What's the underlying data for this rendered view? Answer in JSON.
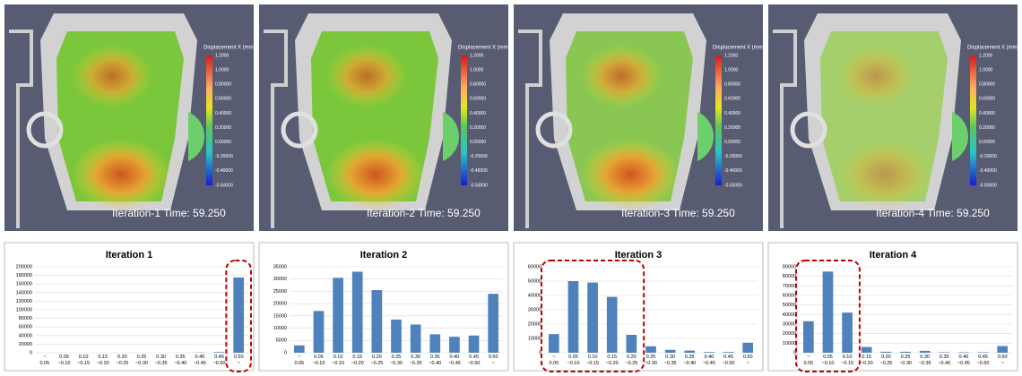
{
  "panels": [
    {
      "caption": "Iteration-1 Time: 59.250",
      "colorbar_title": "Displacement X (mm)",
      "colorbar_labels": [
        "1.2000",
        "1.0000",
        "0.80000",
        "0.60000",
        "0.40000",
        "0.20000",
        "0.00000",
        "-0.20000",
        "-0.40000",
        "-0.60000"
      ]
    },
    {
      "caption": "Iteration-2 Time: 59.250",
      "colorbar_title": "Displacement X (mm)",
      "colorbar_labels": [
        "1.2000",
        "1.0000",
        "0.80000",
        "0.60000",
        "0.40000",
        "0.20000",
        "0.00000",
        "-0.20000",
        "-0.40000",
        "-0.50000"
      ]
    },
    {
      "caption": "Iteration-3 Time: 59.250",
      "colorbar_title": "Displacement X (mm)",
      "colorbar_labels": [
        "1.2000",
        "1.0000",
        "0.80000",
        "0.60000",
        "0.40000",
        "0.20000",
        "0.00000",
        "-0.20000",
        "-0.40000",
        "-0.50000"
      ]
    },
    {
      "caption": "Iteration-4 Time: 59.250",
      "colorbar_title": "Displacement X (mm)",
      "colorbar_labels": [
        "1.2000",
        "1.0000",
        "0.80000",
        "0.60000",
        "0.40000",
        "0.20000",
        "0.00000",
        "-0.20000",
        "-0.40000",
        "-0.50000"
      ]
    }
  ],
  "chart_data": [
    {
      "type": "bar",
      "title": "Iteration 1",
      "color": "#4f81bd",
      "categories": [
        "~ 0.05",
        "0.05 ~0.10",
        "0.10 ~0.15",
        "0.15 ~0.20",
        "0.20 ~0.25",
        "0.25 ~0.30",
        "0.30 ~0.35",
        "0.35 ~0.40",
        "0.40 ~0.45",
        "0.45 ~0.50",
        "0.50 ~"
      ],
      "values": [
        0,
        0,
        0,
        0,
        0,
        0,
        0,
        0,
        500,
        1500,
        175000
      ],
      "ylim": [
        0,
        200000
      ],
      "yticks": [
        0,
        20000,
        40000,
        60000,
        80000,
        100000,
        120000,
        140000,
        160000,
        180000,
        200000
      ],
      "highlight": [
        10,
        10
      ]
    },
    {
      "type": "bar",
      "title": "Iteration 2",
      "color": "#4f81bd",
      "categories": [
        "~ 0.05",
        "0.05 ~0.10",
        "0.10 ~0.15",
        "0.15 ~0.20",
        "0.20 ~0.25",
        "0.25 ~0.30",
        "0.30 ~0.35",
        "0.35 ~0.40",
        "0.40 ~0.45",
        "0.45 ~0.50",
        "0.50 ~"
      ],
      "values": [
        3000,
        17000,
        30500,
        33000,
        25500,
        13500,
        11500,
        7500,
        6500,
        7000,
        24000
      ],
      "ylim": [
        0,
        35000
      ],
      "yticks": [
        0,
        5000,
        10000,
        15000,
        20000,
        25000,
        30000,
        35000
      ]
    },
    {
      "type": "bar",
      "title": "Iteration 3",
      "color": "#4f81bd",
      "categories": [
        "~ 0.05",
        "0.05 ~0.10",
        "0.10 ~0.15",
        "0.15 ~0.20",
        "0.20 ~0.25",
        "0.25 ~0.30",
        "0.30 ~0.35",
        "0.35 ~0.40",
        "0.40 ~0.45",
        "0.45 ~0.50",
        "0.50 ~"
      ],
      "values": [
        13000,
        50000,
        49000,
        39000,
        12500,
        4500,
        2000,
        1500,
        500,
        500,
        7000
      ],
      "ylim": [
        0,
        60000
      ],
      "yticks": [
        0,
        10000,
        20000,
        30000,
        40000,
        50000,
        60000
      ],
      "highlight": [
        0,
        4
      ]
    },
    {
      "type": "bar",
      "title": "Iteration 4",
      "color": "#4f81bd",
      "categories": [
        "~ 0.05",
        "0.05 ~0.10",
        "0.10 ~0.15",
        "0.15 ~0.20",
        "0.20 ~0.25",
        "0.25 ~0.30",
        "0.30 ~0.35",
        "0.35 ~0.40",
        "0.40 ~0.45",
        "0.45 ~0.50",
        "0.50 ~"
      ],
      "values": [
        33000,
        85000,
        42000,
        6000,
        1000,
        1000,
        2000,
        500,
        500,
        500,
        7000
      ],
      "ylim": [
        0,
        90000
      ],
      "yticks": [
        0,
        10000,
        20000,
        30000,
        40000,
        50000,
        60000,
        70000,
        80000,
        90000
      ],
      "highlight": [
        0,
        2
      ]
    }
  ]
}
